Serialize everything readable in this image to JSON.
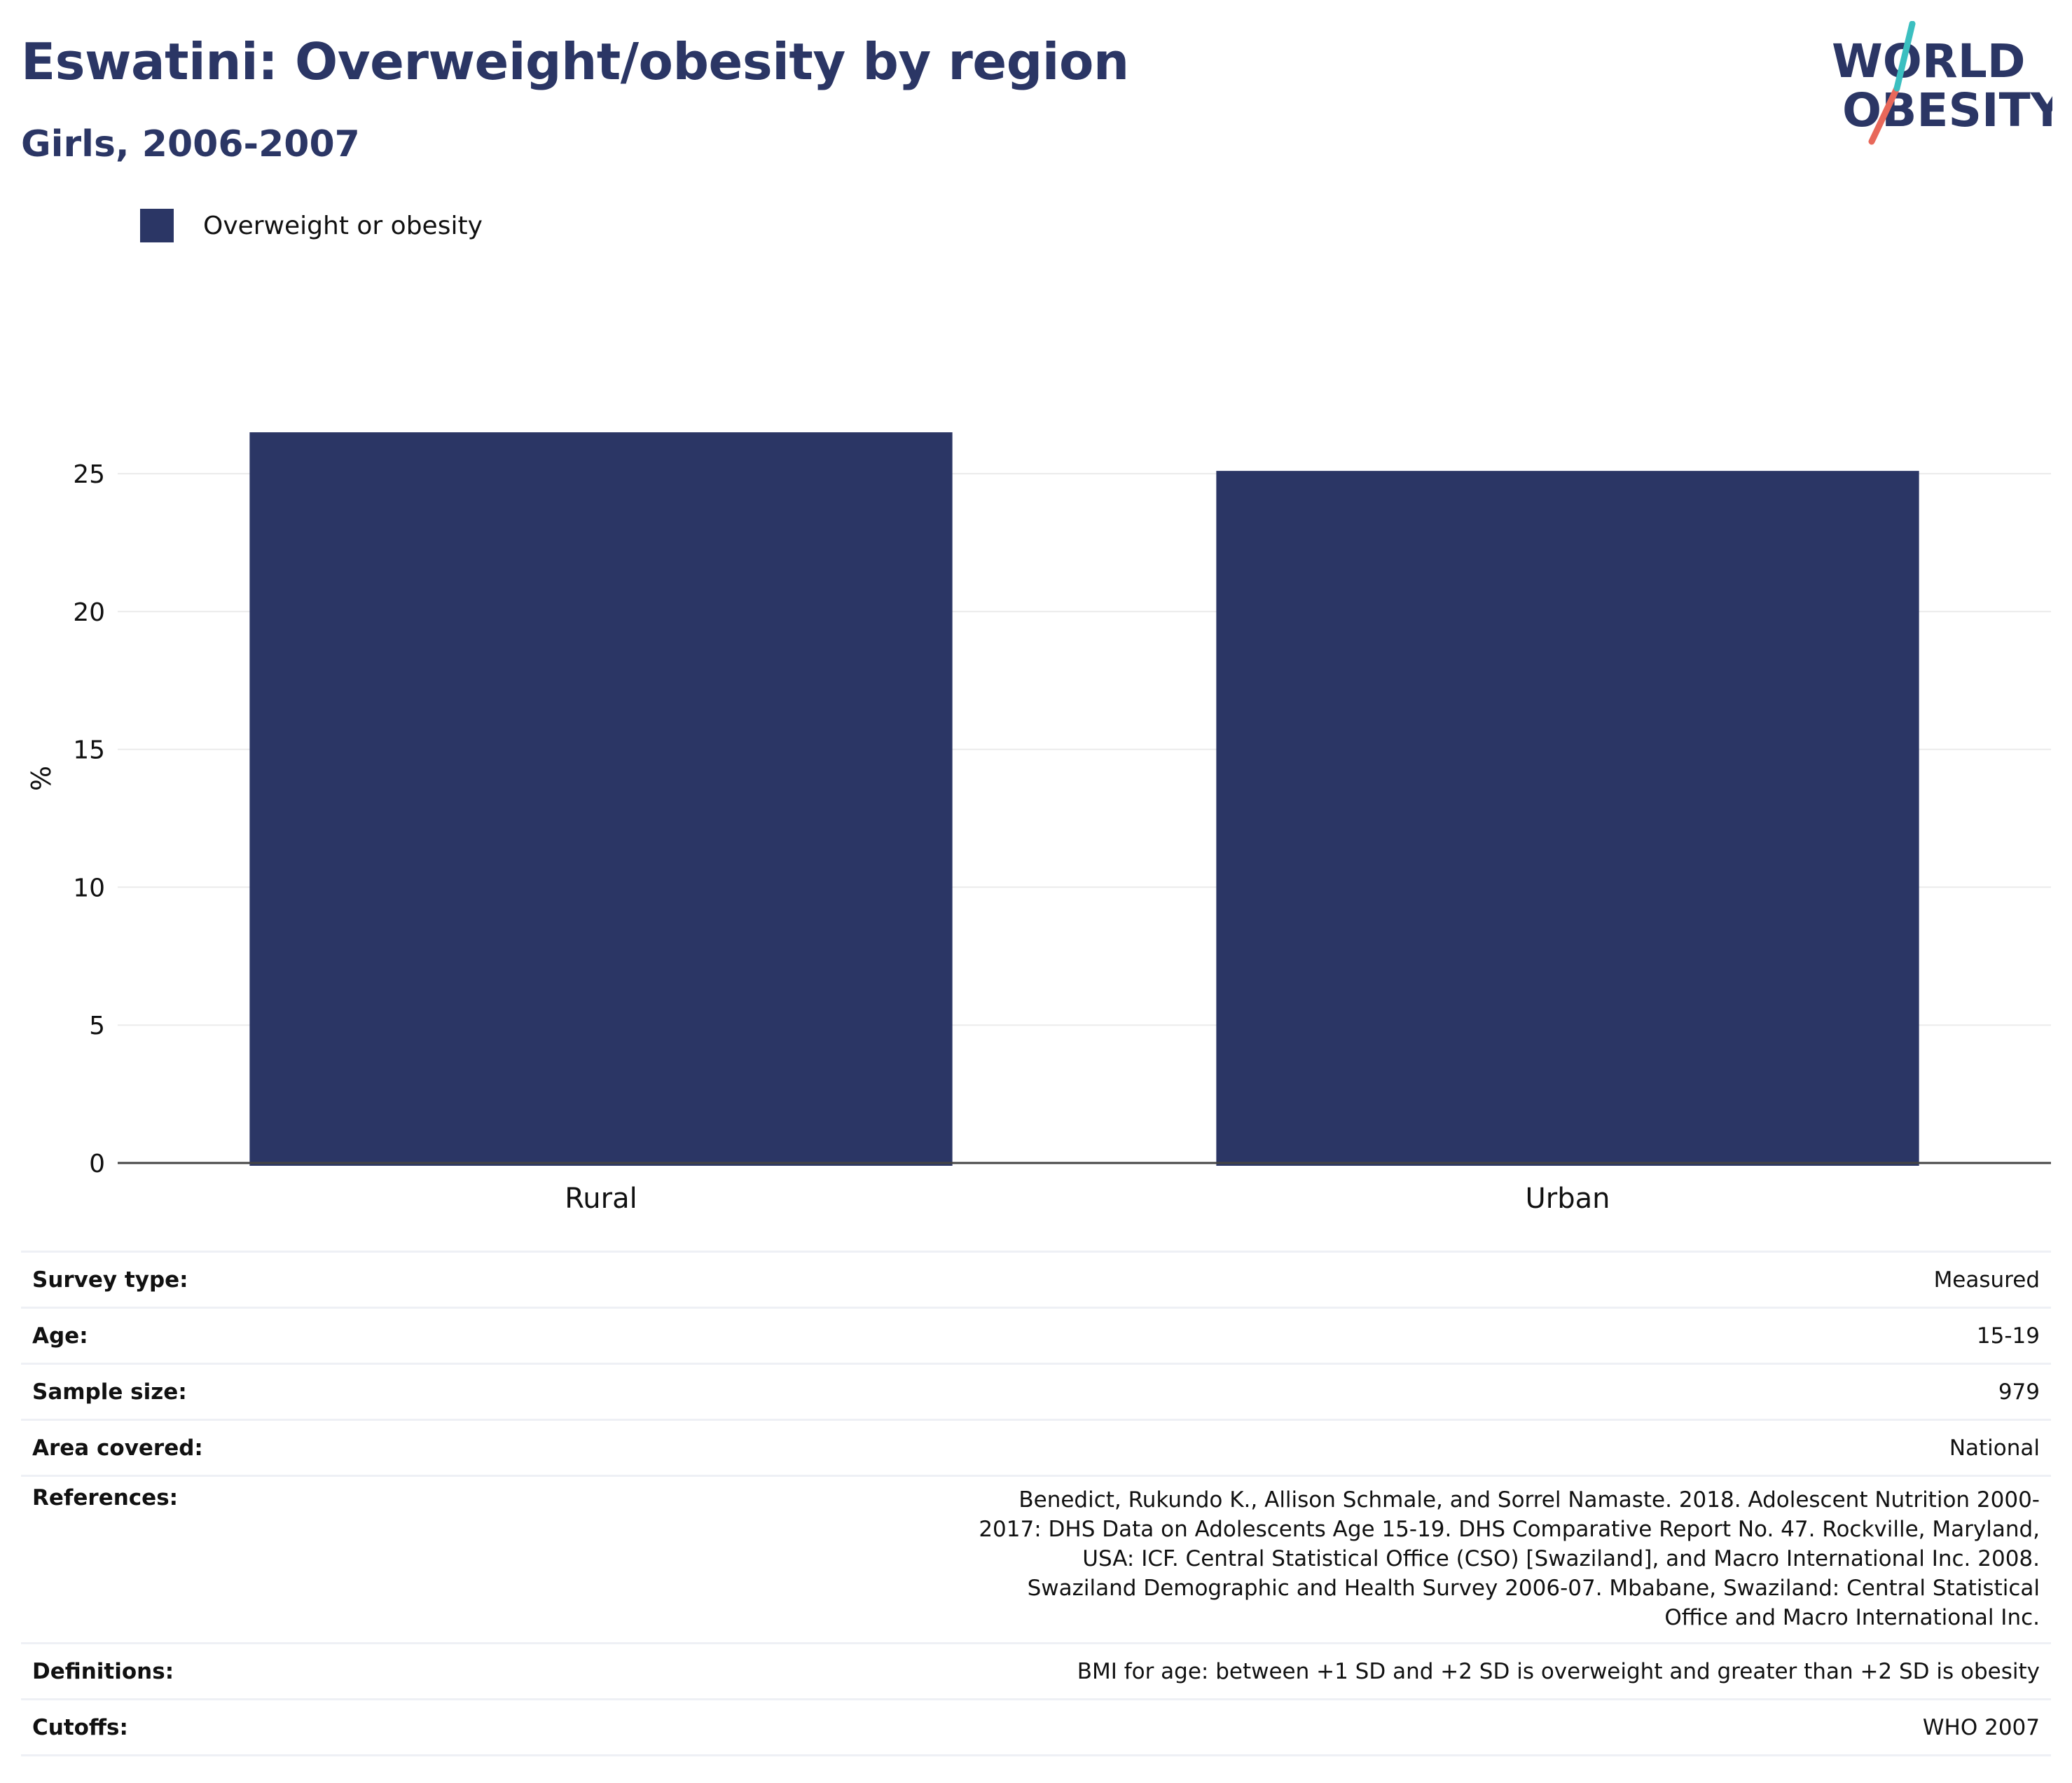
{
  "header": {
    "title": "Eswatini: Overweight/obesity by region",
    "subtitle": "Girls, 2006-2007"
  },
  "logo": {
    "line1": "WORLD",
    "line2": "OBESITY"
  },
  "legend": {
    "label": "Overweight or obesity",
    "color": "#2b3665"
  },
  "chart_data": {
    "type": "bar",
    "categories": [
      "Rural",
      "Urban"
    ],
    "series": [
      {
        "name": "Overweight or obesity",
        "values": [
          26.5,
          25.1
        ]
      }
    ],
    "title": "Eswatini: Overweight/obesity by region",
    "subtitle": "Girls, 2006-2007",
    "xlabel": "",
    "ylabel": "%",
    "ylim": [
      0,
      28
    ],
    "yticks": [
      0,
      5,
      10,
      15,
      20,
      25
    ],
    "grid": true,
    "legend_position": "top-left",
    "bar_color": "#2b3665"
  },
  "info": [
    {
      "key": "Survey type:",
      "value": "Measured"
    },
    {
      "key": "Age:",
      "value": "15-19"
    },
    {
      "key": "Sample size:",
      "value": "979"
    },
    {
      "key": "Area covered:",
      "value": "National"
    },
    {
      "key": "References:",
      "value": "Benedict, Rukundo K., Allison Schmale, and Sorrel Namaste. 2018. Adolescent Nutrition 2000-2017: DHS Data on Adolescents Age 15-19. DHS Comparative Report No. 47. Rockville, Maryland, USA: ICF. Central Statistical Office (CSO) [Swaziland], and Macro International Inc. 2008. Swaziland Demographic and Health Survey 2006-07. Mbabane, Swaziland: Central Statistical Office and Macro International Inc."
    },
    {
      "key": "Definitions:",
      "value": "BMI for age: between +1 SD and +2 SD is overweight and greater than +2 SD is obesity"
    },
    {
      "key": "Cutoffs:",
      "value": "WHO 2007"
    }
  ]
}
